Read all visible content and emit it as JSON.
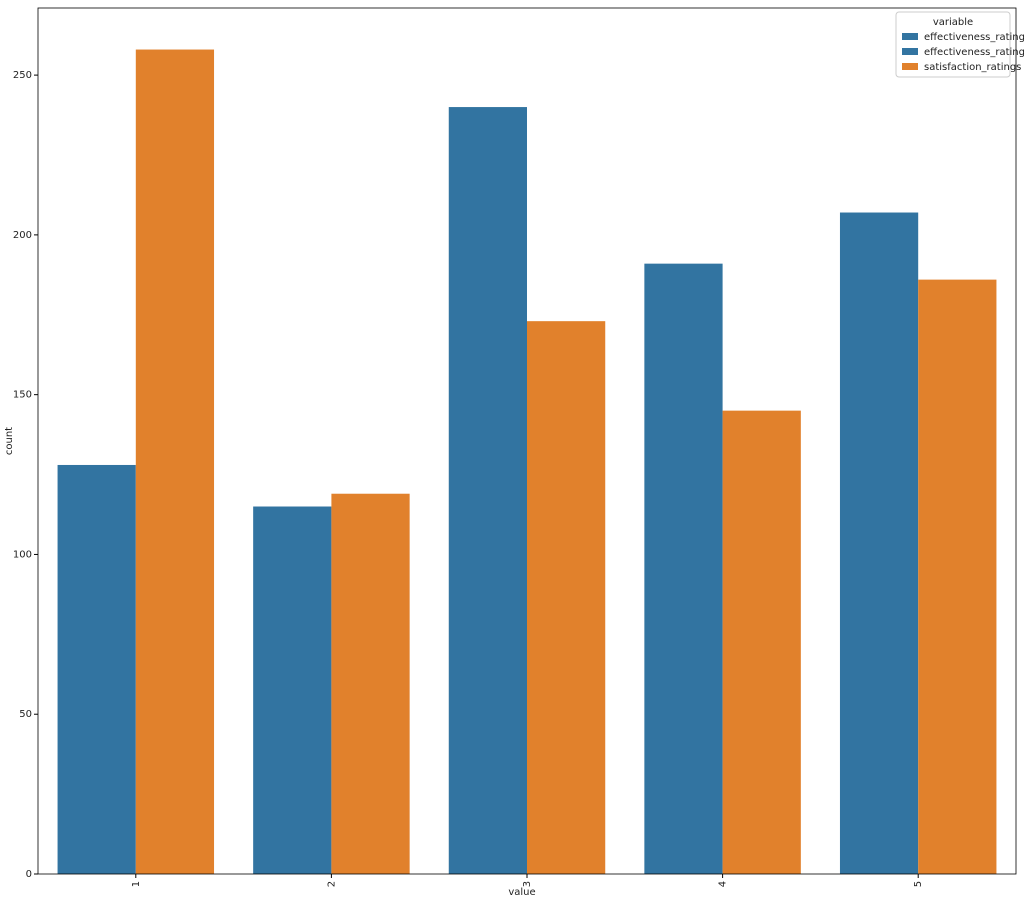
{
  "chart_data": {
    "type": "bar",
    "x_label": "value",
    "y_label": "count",
    "categories": [
      "1",
      "2",
      "3",
      "4",
      "5"
    ],
    "series": [
      {
        "name": "effectiveness_ratings",
        "color": "#3274a1",
        "values": [
          128,
          115,
          240,
          191,
          207
        ]
      },
      {
        "name": "effectiveness_ratings",
        "color": "#3274a1",
        "values": [
          null,
          null,
          null,
          null,
          null
        ]
      },
      {
        "name": "satisfaction_ratings",
        "color": "#e1812c",
        "values": [
          258,
          119,
          173,
          145,
          186
        ]
      }
    ],
    "legend_title": "variable",
    "legend_position": "upper right",
    "ylim": [
      0,
      271
    ],
    "yticks": [
      0,
      50,
      100,
      150,
      200,
      250
    ]
  }
}
